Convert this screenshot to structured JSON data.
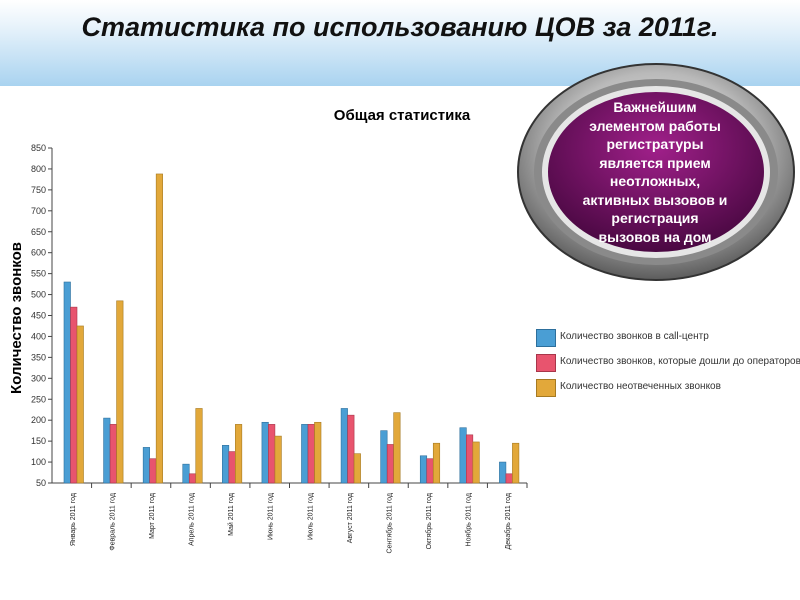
{
  "slide": {
    "title": "Статистика по использованию ЦОВ за 2011г."
  },
  "badge": {
    "lines": [
      "Важнейшим",
      "элементом работы",
      "регистратуры",
      "является прием",
      "неотложных,",
      "активных вызовов и",
      "регистрация",
      "вызовов на дом"
    ]
  },
  "colors": {
    "series1": "#4a9ed4",
    "series2": "#e8546e",
    "series3": "#e2a83a",
    "badge_fill": "#6a0a5c"
  },
  "chart_data": {
    "type": "bar",
    "title": "Общая статистика",
    "ylabel": "Количество звонков",
    "ylim": [
      50,
      850
    ],
    "yticks": [
      "50",
      "100",
      "150",
      "200",
      "250",
      "300",
      "350",
      "400",
      "450",
      "500",
      "550",
      "600",
      "650",
      "700",
      "750",
      "800",
      "850"
    ],
    "categories": [
      "Январь 2011 год",
      "Февраль 2011 год",
      "Март 2011 год",
      "Апрель 2011 год",
      "Май 2011 год",
      "Июнь 2011 год",
      "Июль 2011 год",
      "Август 2011 год",
      "Сентябрь 2011 год",
      "Октябрь 2011 год",
      "Ноябрь 2011 год",
      "Декабрь 2011 год"
    ],
    "series": [
      {
        "name": "Количество звонков в call-центр",
        "values": [
          530,
          205,
          135,
          95,
          140,
          195,
          190,
          228,
          175,
          115,
          182,
          100
        ]
      },
      {
        "name": "Количество звонков, которые дошли до операторов",
        "values": [
          470,
          190,
          108,
          72,
          125,
          190,
          190,
          212,
          142,
          108,
          165,
          72
        ]
      },
      {
        "name": "Количество неотвеченных звонков",
        "values": [
          425,
          485,
          788,
          228,
          190,
          162,
          195,
          120,
          218,
          145,
          148,
          145
        ]
      }
    ],
    "legend_position": "right",
    "grid": false
  }
}
